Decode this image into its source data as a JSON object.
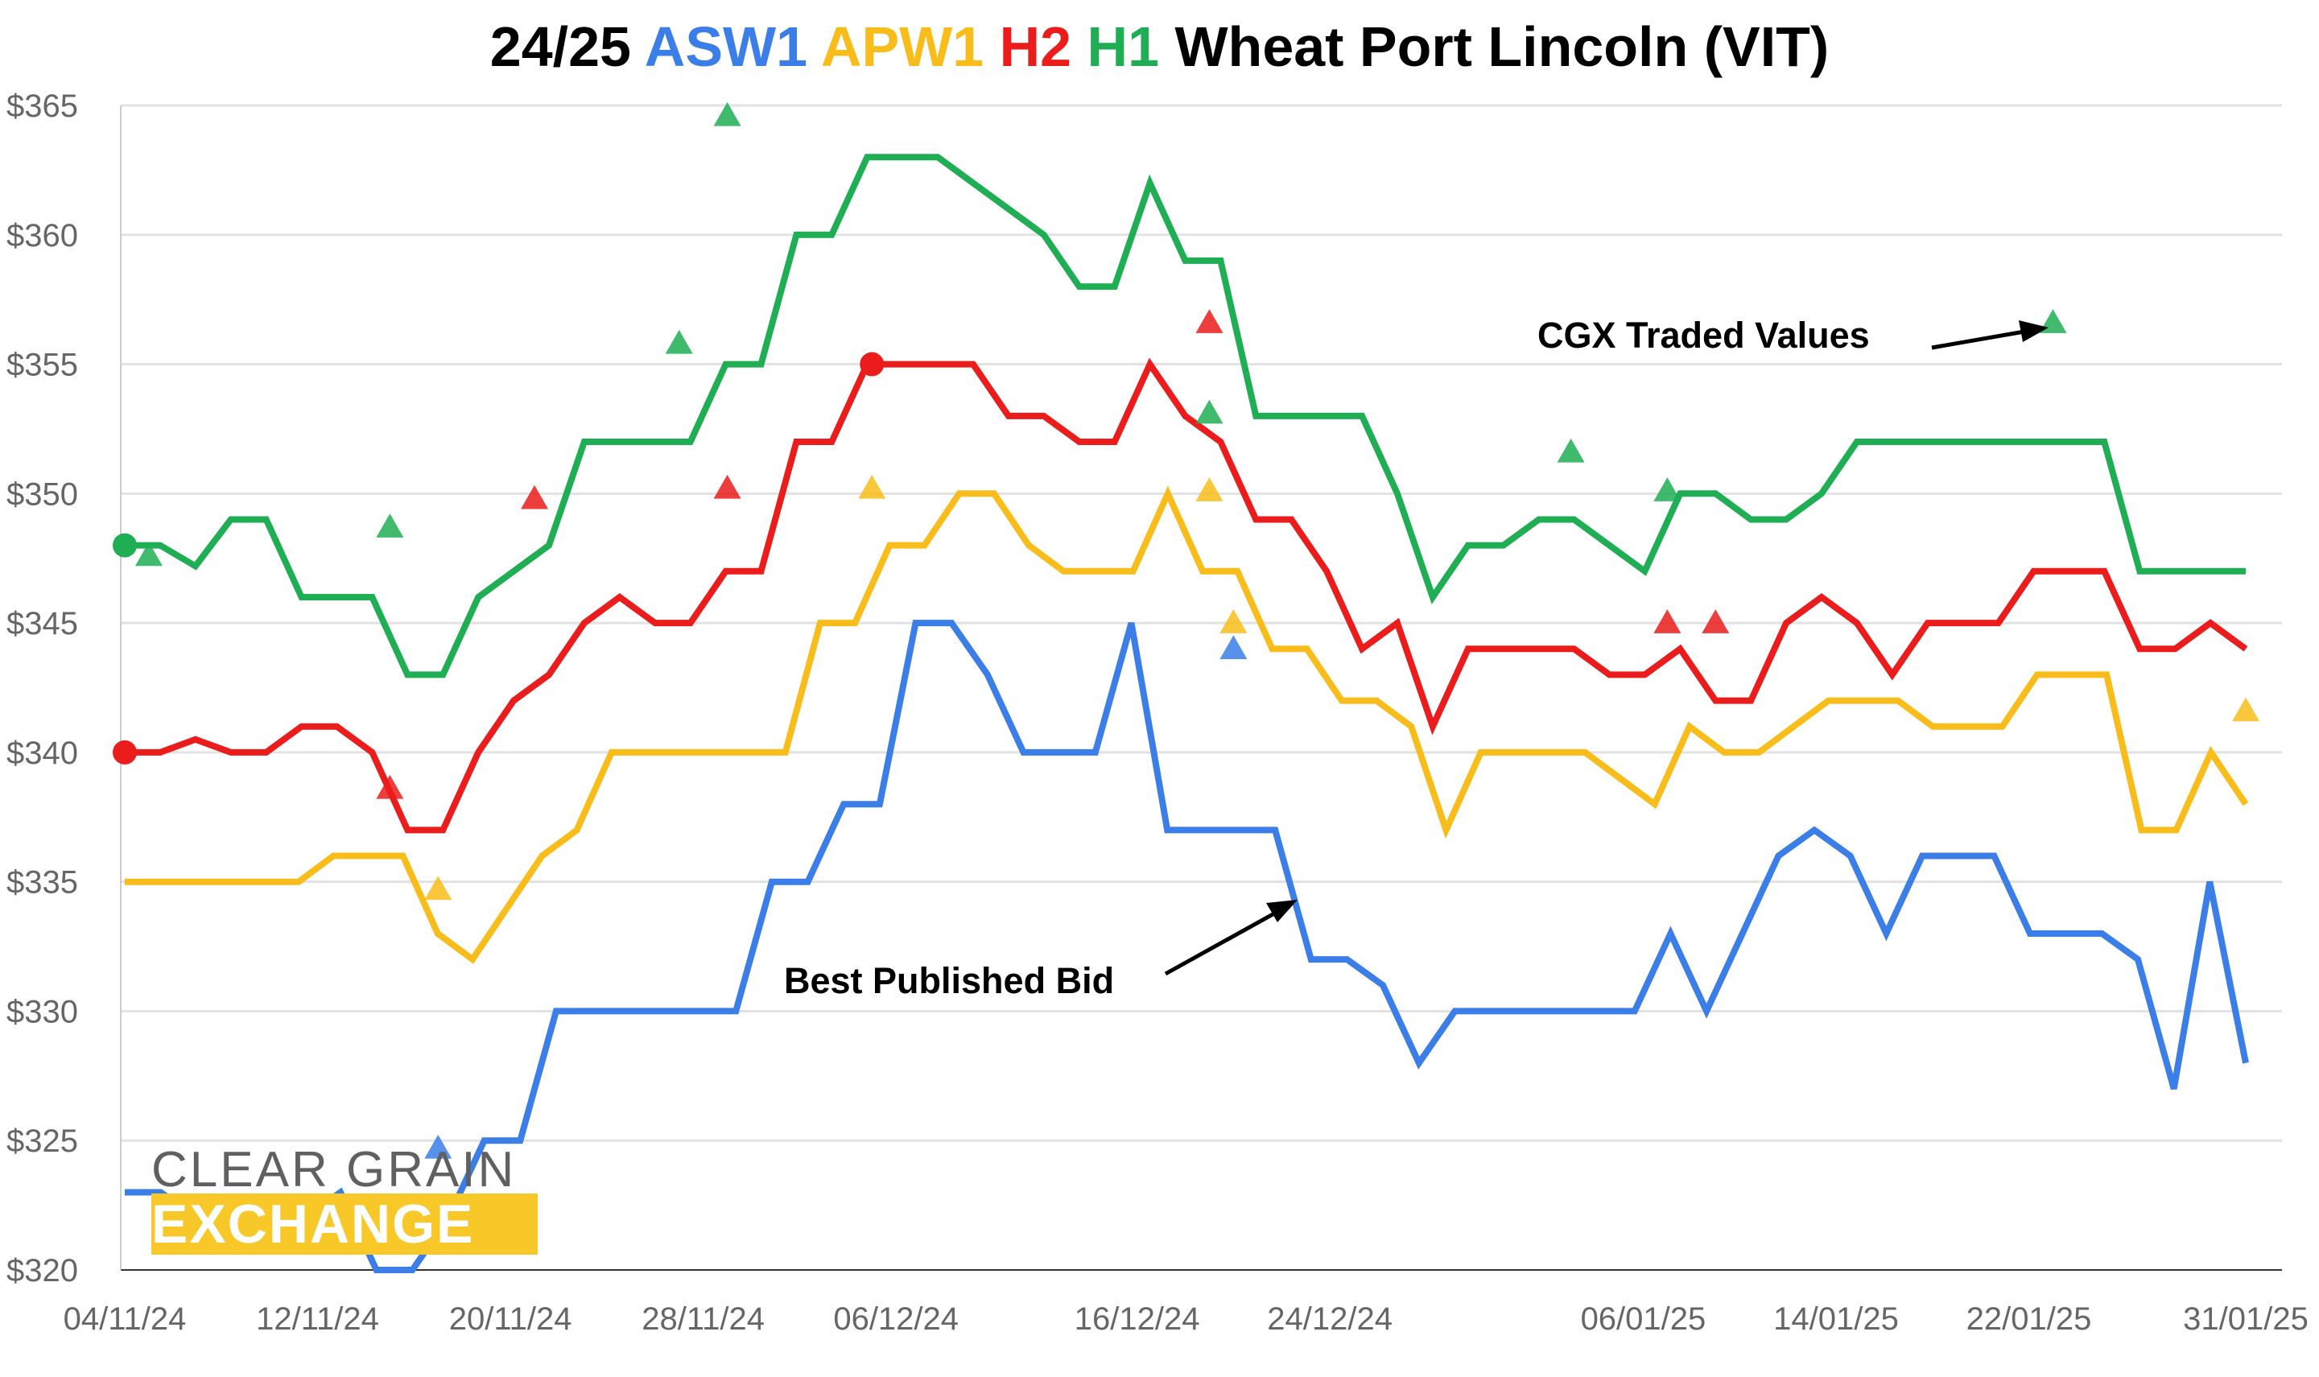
{
  "title_parts": [
    {
      "text": "24/25",
      "color": "#000000"
    },
    {
      "text": "ASW1",
      "color": "#3b7ee8"
    },
    {
      "text": "APW1",
      "color": "#f8bd1a"
    },
    {
      "text": "H2",
      "color": "#ea1c1c"
    },
    {
      "text": "H1",
      "color": "#1fae54"
    },
    {
      "text": "Wheat Port Lincoln (VIT)",
      "color": "#000000"
    }
  ],
  "logo": {
    "top": "CLEAR GRAIN",
    "bottom": "EXCHANGE"
  },
  "annotations": {
    "cgx": "CGX Traded Values",
    "bid": "Best Published Bid"
  },
  "chart_data": {
    "type": "line",
    "title": "24/25 ASW1 APW1 H2 H1 Wheat Port Lincoln (VIT)",
    "ylim": [
      320,
      365
    ],
    "yticks": [
      "$320",
      "$325",
      "$330",
      "$335",
      "$340",
      "$345",
      "$350",
      "$355",
      "$360",
      "$365"
    ],
    "ytick_values": [
      320,
      325,
      330,
      335,
      340,
      345,
      350,
      355,
      360,
      365
    ],
    "xticks": [
      "04/11/24",
      "12/11/24",
      "20/11/24",
      "28/11/24",
      "06/12/24",
      "16/12/24",
      "24/12/24",
      "06/01/25",
      "14/01/25",
      "22/01/25",
      "31/01/25"
    ],
    "grid": true,
    "series": [
      {
        "name": "ASW1",
        "color": "#3b7ee8",
        "values": [
          323,
          323,
          322,
          322,
          322,
          322,
          323,
          320,
          320,
          322,
          325,
          325,
          330,
          330,
          330,
          330,
          330,
          330,
          335,
          335,
          338,
          338,
          345,
          345,
          343,
          340,
          340,
          340,
          345,
          337,
          337,
          337,
          337,
          332,
          332,
          331,
          328,
          330,
          330,
          330,
          330,
          330,
          330,
          333,
          330,
          333,
          336,
          337,
          336,
          333,
          336,
          336,
          336,
          333,
          333,
          333,
          332,
          327,
          335,
          328
        ]
      },
      {
        "name": "APW1",
        "color": "#f8bd1a",
        "values": [
          335,
          335,
          335,
          335,
          335,
          335,
          336,
          336,
          336,
          333,
          332,
          334,
          336,
          337,
          340,
          340,
          340,
          340,
          340,
          340,
          345,
          345,
          348,
          348,
          350,
          350,
          348,
          347,
          347,
          347,
          350,
          347,
          347,
          344,
          344,
          342,
          342,
          341,
          337,
          340,
          340,
          340,
          340,
          339,
          338,
          341,
          340,
          340,
          341,
          342,
          342,
          342,
          341,
          341,
          341,
          343,
          343,
          343,
          337,
          337,
          340,
          338
        ]
      },
      {
        "name": "H2",
        "color": "#ea1c1c",
        "values": [
          340,
          340,
          340.5,
          340,
          340,
          341,
          341,
          340,
          337,
          337,
          340,
          342,
          343,
          345,
          346,
          345,
          345,
          347,
          347,
          352,
          352,
          355,
          355,
          355,
          355,
          353,
          353,
          352,
          352,
          355,
          353,
          352,
          349,
          349,
          347,
          344,
          345,
          341,
          344,
          344,
          344,
          344,
          343,
          343,
          344,
          342,
          342,
          345,
          346,
          345,
          343,
          345,
          345,
          345,
          347,
          347,
          347,
          344,
          344,
          345,
          344
        ]
      },
      {
        "name": "H1",
        "color": "#1fae54",
        "values": [
          348,
          348,
          347.2,
          349,
          349,
          346,
          346,
          346,
          343,
          343,
          346,
          347,
          348,
          352,
          352,
          352,
          352,
          355,
          355,
          360,
          360,
          363,
          363,
          363,
          362,
          361,
          360,
          358,
          358,
          362,
          359,
          359,
          353,
          353,
          353,
          353,
          350,
          346,
          348,
          348,
          349,
          349,
          348,
          347,
          350,
          350,
          349,
          349,
          350,
          352,
          352,
          352,
          352,
          352,
          352,
          352,
          352,
          347,
          347,
          347,
          347
        ]
      }
    ],
    "traded_points": [
      {
        "series": "H1",
        "x": "05/11/24",
        "y": 347.6,
        "marker": "triangle"
      },
      {
        "series": "H1",
        "x": "15/11/24",
        "y": 348.7,
        "marker": "triangle"
      },
      {
        "series": "H1",
        "x": "27/11/24",
        "y": 355.8,
        "marker": "triangle"
      },
      {
        "series": "H1",
        "x": "29/11/24",
        "y": 364.6,
        "marker": "triangle"
      },
      {
        "series": "H1",
        "x": "19/12/24",
        "y": 353.1,
        "marker": "triangle"
      },
      {
        "series": "H1",
        "x": "03/01/25",
        "y": 351.6,
        "marker": "triangle"
      },
      {
        "series": "H1",
        "x": "07/01/25",
        "y": 350.1,
        "marker": "triangle"
      },
      {
        "series": "H1",
        "x": "23/01/25",
        "y": 356.6,
        "marker": "triangle"
      },
      {
        "series": "H2",
        "x": "15/11/24",
        "y": 338.6,
        "marker": "triangle"
      },
      {
        "series": "H2",
        "x": "21/11/24",
        "y": 349.8,
        "marker": "triangle"
      },
      {
        "series": "H2",
        "x": "29/11/24",
        "y": 350.2,
        "marker": "triangle"
      },
      {
        "series": "H2",
        "x": "19/12/24",
        "y": 356.6,
        "marker": "triangle"
      },
      {
        "series": "H2",
        "x": "07/01/25",
        "y": 345.0,
        "marker": "triangle"
      },
      {
        "series": "H2",
        "x": "09/01/25",
        "y": 345.0,
        "marker": "triangle"
      },
      {
        "series": "APW1",
        "x": "17/11/24",
        "y": 334.7,
        "marker": "triangle"
      },
      {
        "series": "APW1",
        "x": "05/12/24",
        "y": 350.2,
        "marker": "triangle"
      },
      {
        "series": "APW1",
        "x": "19/12/24",
        "y": 350.1,
        "marker": "triangle"
      },
      {
        "series": "APW1",
        "x": "20/12/24",
        "y": 345.0,
        "marker": "triangle"
      },
      {
        "series": "APW1",
        "x": "31/01/25",
        "y": 341.6,
        "marker": "triangle"
      },
      {
        "series": "ASW1",
        "x": "17/11/24",
        "y": 324.7,
        "marker": "triangle"
      },
      {
        "series": "ASW1",
        "x": "20/12/24",
        "y": 344.0,
        "marker": "triangle"
      }
    ],
    "highlight_points": [
      {
        "series": "H1",
        "x": "04/11/24",
        "y": 348
      },
      {
        "series": "H2",
        "x": "04/11/24",
        "y": 340
      },
      {
        "series": "H2",
        "x": "05/12/24",
        "y": 355
      }
    ]
  }
}
